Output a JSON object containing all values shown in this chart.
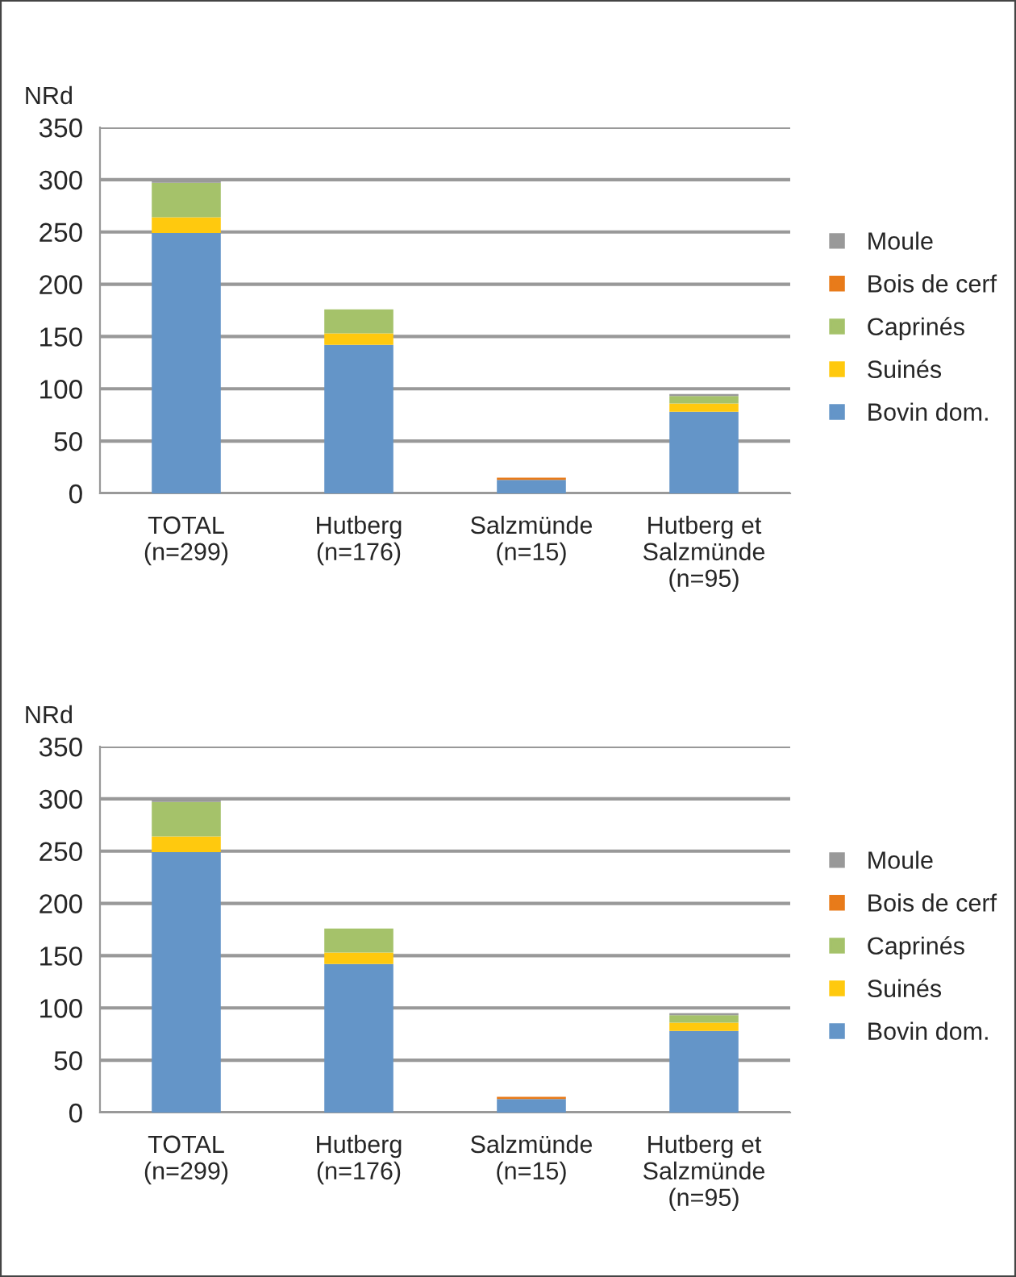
{
  "chart_data": [
    {
      "type": "bar",
      "ylabel": "NRd",
      "stacked": true,
      "categories": [
        "TOTAL\n(n=299)",
        "Hutberg\n(n=176)",
        "Salzmünde\n(n=15)",
        "Hutberg et\nSalzmünde\n(n=95)"
      ],
      "series": [
        {
          "name": "Bovin dom.",
          "color": "#6495c8",
          "values": [
            249,
            142,
            13,
            78
          ]
        },
        {
          "name": "Suinés",
          "color": "#ffc90e",
          "values": [
            15,
            11,
            null,
            8
          ]
        },
        {
          "name": "Caprinés",
          "color": "#a5c26a",
          "values": [
            33,
            23,
            null,
            7
          ]
        },
        {
          "name": "Bois de cerf",
          "color": "#e87b1a",
          "values": [
            null,
            null,
            2,
            null
          ]
        },
        {
          "name": "Moule",
          "color": "#999999",
          "values": [
            2,
            null,
            null,
            2
          ]
        }
      ],
      "ylim": [
        0,
        350
      ],
      "yticks": [
        0,
        50,
        100,
        150,
        200,
        250,
        300,
        350
      ],
      "grid": "y",
      "legend": "right"
    },
    {
      "type": "bar",
      "ylabel": "NRd",
      "stacked": true,
      "categories": [
        "TOTAL\n(n=299)",
        "Hutberg\n(n=176)",
        "Salzmünde\n(n=15)",
        "Hutberg et\nSalzmünde\n(n=95)"
      ],
      "series": [
        {
          "name": "Bovin dom.",
          "color": "#6495c8",
          "values": [
            249,
            142,
            13,
            78
          ]
        },
        {
          "name": "Suinés",
          "color": "#ffc90e",
          "values": [
            15,
            11,
            null,
            8
          ]
        },
        {
          "name": "Caprinés",
          "color": "#a5c26a",
          "values": [
            33,
            23,
            null,
            7
          ]
        },
        {
          "name": "Bois de cerf",
          "color": "#e87b1a",
          "values": [
            null,
            null,
            2,
            null
          ]
        },
        {
          "name": "Moule",
          "color": "#999999",
          "values": [
            2,
            null,
            null,
            2
          ]
        }
      ],
      "ylim": [
        0,
        350
      ],
      "yticks": [
        0,
        50,
        100,
        150,
        200,
        250,
        300,
        350
      ],
      "grid": "y",
      "legend": "right"
    }
  ]
}
